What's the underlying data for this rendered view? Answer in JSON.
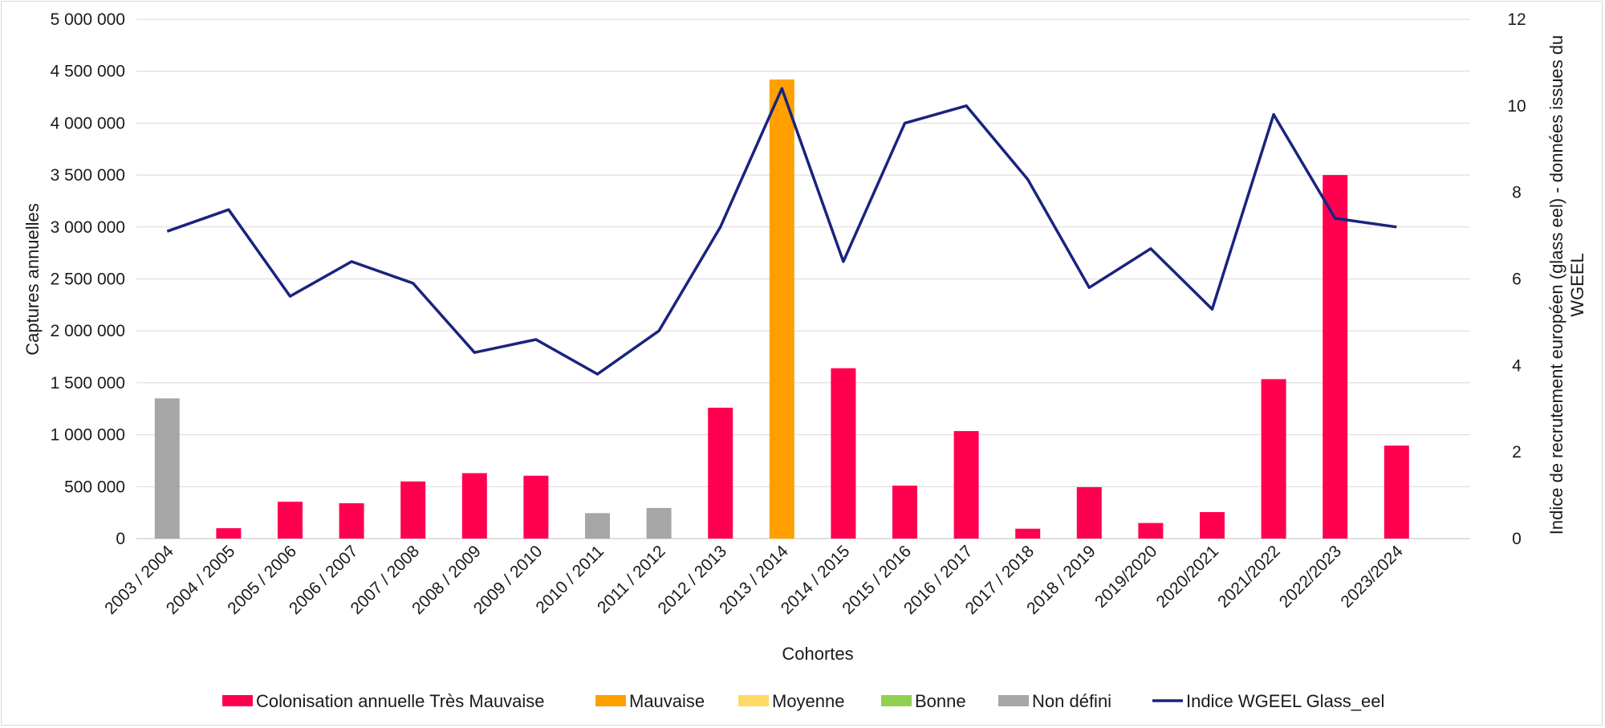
{
  "chart_data": {
    "type": "bar",
    "categories": [
      "2003 / 2004",
      "2004 / 2005",
      "2005 / 2006",
      "2006 / 2007",
      "2007 / 2008",
      "2008 / 2009",
      "2009 / 2010",
      "2010 / 2011",
      "2011 / 2012",
      "2012 / 2013",
      "2013 / 2014",
      "2014 / 2015",
      "2015 / 2016",
      "2016 / 2017",
      "2017 / 2018",
      "2018 / 2019",
      "2019/2020",
      "2020/2021",
      "2021/2022",
      "2022/2023",
      "2023/2024"
    ],
    "captures": [
      1350000,
      100000,
      355000,
      340000,
      550000,
      630000,
      605000,
      245000,
      295000,
      1260000,
      4420000,
      1640000,
      510000,
      1035000,
      95000,
      495000,
      150000,
      255000,
      1535000,
      3500000,
      895000
    ],
    "bar_classes": [
      "Non défini",
      "Très Mauvaise",
      "Très Mauvaise",
      "Très Mauvaise",
      "Très Mauvaise",
      "Très Mauvaise",
      "Très Mauvaise",
      "Non défini",
      "Non défini",
      "Très Mauvaise",
      "Mauvaise",
      "Très Mauvaise",
      "Très Mauvaise",
      "Très Mauvaise",
      "Très Mauvaise",
      "Très Mauvaise",
      "Très Mauvaise",
      "Très Mauvaise",
      "Très Mauvaise",
      "Très Mauvaise",
      "Très Mauvaise"
    ],
    "class_colors": {
      "Très Mauvaise": "#ff0050",
      "Mauvaise": "#ffa000",
      "Moyenne": "#ffd966",
      "Bonne": "#92d050",
      "Non défini": "#a6a6a6"
    },
    "line_series": {
      "name": "Indice WGEEL Glass_eel",
      "color": "#1a237e",
      "values": [
        7.1,
        7.6,
        5.6,
        6.4,
        5.9,
        4.3,
        4.6,
        3.8,
        4.8,
        7.2,
        10.4,
        6.4,
        9.6,
        10.0,
        8.3,
        5.8,
        6.7,
        5.3,
        9.8,
        7.4,
        7.2
      ]
    },
    "y_left": {
      "label": "Captures annuelles",
      "lim": [
        0,
        5000000
      ],
      "ticks": [
        "0",
        "500 000",
        "1 000 000",
        "1 500 000",
        "2 000 000",
        "2 500 000",
        "3 000 000",
        "3 500 000",
        "4 000 000",
        "4 500 000",
        "5 000 000"
      ]
    },
    "y_right": {
      "label_lines": [
        "Indice de recrutement européen (glass eel) - données issues du",
        "WGEEL"
      ],
      "lim": [
        0,
        12
      ],
      "ticks": [
        "0",
        "2",
        "4",
        "6",
        "8",
        "10",
        "12"
      ]
    },
    "xlabel": "Cohortes",
    "grid": true,
    "legend_position": "bottom",
    "legend": [
      {
        "label": "Colonisation annuelle Très Mauvaise",
        "color": "#ff0050",
        "kind": "box"
      },
      {
        "label": "Mauvaise",
        "color": "#ffa000",
        "kind": "box"
      },
      {
        "label": "Moyenne",
        "color": "#ffd966",
        "kind": "box"
      },
      {
        "label": "Bonne",
        "color": "#92d050",
        "kind": "box"
      },
      {
        "label": "Non défini",
        "color": "#a6a6a6",
        "kind": "box"
      },
      {
        "label": "Indice WGEEL Glass_eel",
        "color": "#1a237e",
        "kind": "line"
      }
    ]
  }
}
